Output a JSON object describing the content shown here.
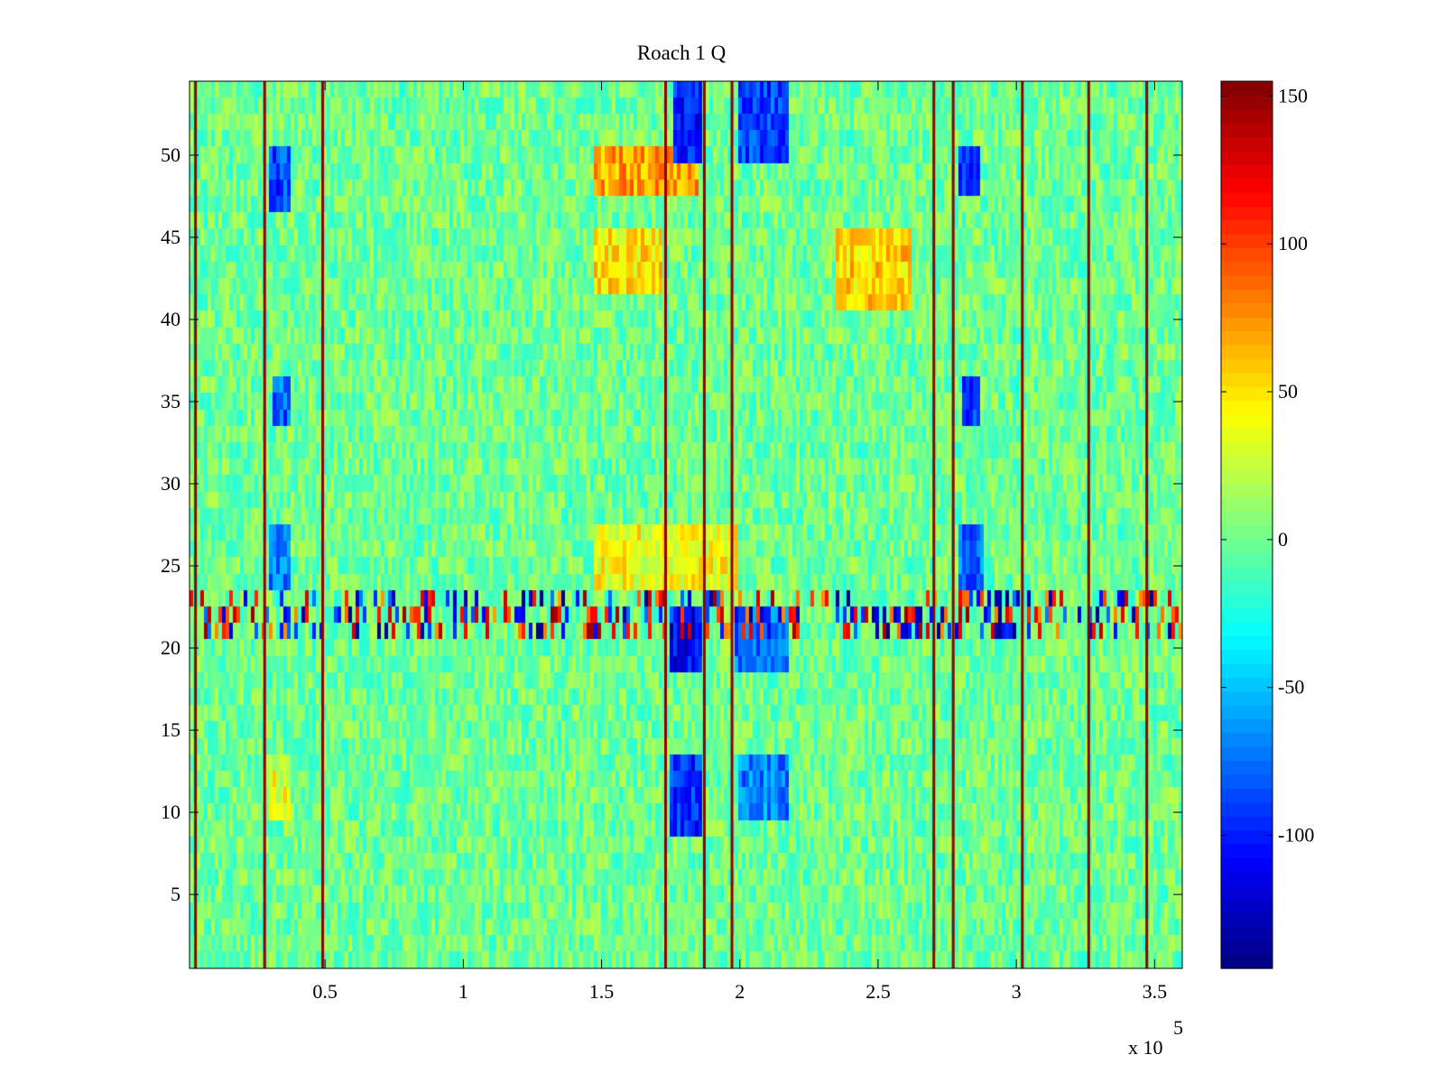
{
  "chart_data": {
    "type": "heatmap",
    "title": "Roach 1 Q",
    "xlabel": "",
    "ylabel": "",
    "xlim": [
      1000,
      360000
    ],
    "ylim": [
      0.5,
      54.5
    ],
    "x_ticks": [
      50000,
      100000,
      150000,
      200000,
      250000,
      300000,
      350000
    ],
    "x_tick_labels": [
      "0.5",
      "1",
      "1.5",
      "2",
      "2.5",
      "3",
      "3.5"
    ],
    "x_multiplier_label": "x 10",
    "x_multiplier_exponent": "5",
    "y_ticks": [
      5,
      10,
      15,
      20,
      25,
      30,
      35,
      40,
      45,
      50
    ],
    "y_tick_labels": [
      "5",
      "10",
      "15",
      "20",
      "25",
      "30",
      "35",
      "40",
      "45",
      "50"
    ],
    "colormap": "jet",
    "clim": [
      -145,
      155
    ],
    "colorbar_ticks": [
      150,
      100,
      50,
      0,
      -50,
      -100
    ],
    "colorbar_tick_labels": [
      "150",
      "100",
      "50",
      "0",
      "-50",
      "-100"
    ],
    "grid": false,
    "rows": 54,
    "vertical_stripe_x": [
      3000,
      28000,
      49000,
      173000,
      187000,
      197000,
      270000,
      277000,
      302000,
      326000,
      347000
    ],
    "highlight_row_range": [
      21,
      23
    ],
    "features": [
      {
        "x": [
          147000,
          172000
        ],
        "y": [
          42,
          45
        ],
        "value": 50
      },
      {
        "x": [
          235000,
          262000
        ],
        "y": [
          41,
          45
        ],
        "value": 55
      },
      {
        "x": [
          147000,
          185000
        ],
        "y": [
          48,
          50
        ],
        "value": 70
      },
      {
        "x": [
          147000,
          200000
        ],
        "y": [
          24,
          27
        ],
        "value": 40
      },
      {
        "x": [
          30000,
          37000
        ],
        "y": [
          47,
          50
        ],
        "value": -90
      },
      {
        "x": [
          279000,
          287000
        ],
        "y": [
          48,
          50
        ],
        "value": -90
      },
      {
        "x": [
          30000,
          38000
        ],
        "y": [
          24,
          27
        ],
        "value": -70
      },
      {
        "x": [
          279000,
          288000
        ],
        "y": [
          24,
          27
        ],
        "value": -75
      },
      {
        "x": [
          31000,
          37000
        ],
        "y": [
          34,
          36
        ],
        "value": -80
      },
      {
        "x": [
          280000,
          287000
        ],
        "y": [
          34,
          36
        ],
        "value": -85
      },
      {
        "x": [
          174000,
          186000
        ],
        "y": [
          19,
          22
        ],
        "value": -110
      },
      {
        "x": [
          175000,
          186000
        ],
        "y": [
          9,
          13
        ],
        "value": -95
      },
      {
        "x": [
          176000,
          186000
        ],
        "y": [
          50,
          54
        ],
        "value": -100
      },
      {
        "x": [
          200000,
          218000
        ],
        "y": [
          50,
          54
        ],
        "value": -90
      },
      {
        "x": [
          198000,
          218000
        ],
        "y": [
          19,
          22
        ],
        "value": -75
      },
      {
        "x": [
          200000,
          218000
        ],
        "y": [
          10,
          13
        ],
        "value": -70
      },
      {
        "x": [
          30000,
          38000
        ],
        "y": [
          10,
          13
        ],
        "value": 35
      }
    ]
  }
}
